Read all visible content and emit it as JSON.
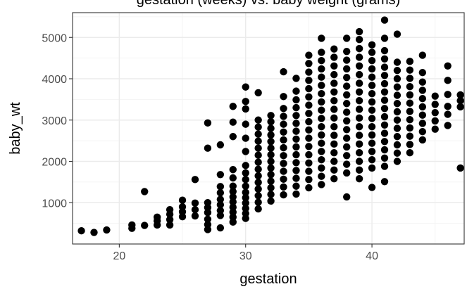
{
  "chart_data": {
    "type": "scatter",
    "title": "gestation (weeks) vs. baby weight (grams)",
    "xlabel": "gestation",
    "ylabel": "baby_wt",
    "xlim": [
      16.3,
      47.3
    ],
    "ylim": [
      0,
      5600
    ],
    "x_ticks": [
      20,
      30,
      40
    ],
    "y_ticks": [
      1000,
      2000,
      3000,
      4000,
      5000
    ],
    "x_tick_labels": [
      "20",
      "30",
      "40"
    ],
    "y_tick_labels": [
      "1000",
      "2000",
      "3000",
      "4000",
      "5000"
    ],
    "grid": true,
    "point_color": "#000000",
    "points": [
      [
        17,
        320
      ],
      [
        18,
        280
      ],
      [
        19,
        340
      ],
      [
        21,
        380
      ],
      [
        21,
        460
      ],
      [
        22,
        450
      ],
      [
        22,
        1270
      ],
      [
        23,
        460
      ],
      [
        23,
        560
      ],
      [
        23,
        650
      ],
      [
        24,
        460
      ],
      [
        24,
        590
      ],
      [
        24,
        720
      ],
      [
        24,
        830
      ],
      [
        25,
        660
      ],
      [
        25,
        780
      ],
      [
        25,
        900
      ],
      [
        25,
        1060
      ],
      [
        26,
        680
      ],
      [
        26,
        830
      ],
      [
        26,
        990
      ],
      [
        26,
        1560
      ],
      [
        27,
        350
      ],
      [
        27,
        470
      ],
      [
        27,
        600
      ],
      [
        27,
        760
      ],
      [
        27,
        880
      ],
      [
        27,
        1000
      ],
      [
        27,
        2320
      ],
      [
        27,
        2930
      ],
      [
        28,
        390
      ],
      [
        28,
        690
      ],
      [
        28,
        810
      ],
      [
        28,
        950
      ],
      [
        28,
        1080
      ],
      [
        28,
        1240
      ],
      [
        28,
        1390
      ],
      [
        28,
        1680
      ],
      [
        28,
        2400
      ],
      [
        29,
        530
      ],
      [
        29,
        650
      ],
      [
        29,
        770
      ],
      [
        29,
        890
      ],
      [
        29,
        1020
      ],
      [
        29,
        1140
      ],
      [
        29,
        1270
      ],
      [
        29,
        1400
      ],
      [
        29,
        1600
      ],
      [
        29,
        1800
      ],
      [
        29,
        2600
      ],
      [
        29,
        2950
      ],
      [
        29,
        3330
      ],
      [
        30,
        620
      ],
      [
        30,
        740
      ],
      [
        30,
        860
      ],
      [
        30,
        990
      ],
      [
        30,
        1120
      ],
      [
        30,
        1250
      ],
      [
        30,
        1400
      ],
      [
        30,
        1560
      ],
      [
        30,
        1720
      ],
      [
        30,
        1900
      ],
      [
        30,
        2240
      ],
      [
        30,
        2560
      ],
      [
        30,
        2900
      ],
      [
        30,
        3270
      ],
      [
        30,
        3450
      ],
      [
        30,
        3800
      ],
      [
        31,
        850
      ],
      [
        31,
        1010
      ],
      [
        31,
        1170
      ],
      [
        31,
        1330
      ],
      [
        31,
        1490
      ],
      [
        31,
        1650
      ],
      [
        31,
        1810
      ],
      [
        31,
        1980
      ],
      [
        31,
        2150
      ],
      [
        31,
        2320
      ],
      [
        31,
        2490
      ],
      [
        31,
        2660
      ],
      [
        31,
        2830
      ],
      [
        31,
        3000
      ],
      [
        31,
        3660
      ],
      [
        32,
        1040
      ],
      [
        32,
        1200
      ],
      [
        32,
        1360
      ],
      [
        32,
        1520
      ],
      [
        32,
        1680
      ],
      [
        32,
        1840
      ],
      [
        32,
        2000
      ],
      [
        32,
        2160
      ],
      [
        32,
        2320
      ],
      [
        32,
        2480
      ],
      [
        32,
        2640
      ],
      [
        32,
        2800
      ],
      [
        32,
        2960
      ],
      [
        32,
        3110
      ],
      [
        33,
        1190
      ],
      [
        33,
        1380
      ],
      [
        33,
        1570
      ],
      [
        33,
        1760
      ],
      [
        33,
        1950
      ],
      [
        33,
        2140
      ],
      [
        33,
        2330
      ],
      [
        33,
        2520
      ],
      [
        33,
        2710
      ],
      [
        33,
        2900
      ],
      [
        33,
        3090
      ],
      [
        33,
        3280
      ],
      [
        33,
        3570
      ],
      [
        33,
        4170
      ],
      [
        34,
        1210
      ],
      [
        34,
        1400
      ],
      [
        34,
        1590
      ],
      [
        34,
        1780
      ],
      [
        34,
        1970
      ],
      [
        34,
        2160
      ],
      [
        34,
        2350
      ],
      [
        34,
        2540
      ],
      [
        34,
        2730
      ],
      [
        34,
        2920
      ],
      [
        34,
        3110
      ],
      [
        34,
        3300
      ],
      [
        34,
        3490
      ],
      [
        34,
        3700
      ],
      [
        34,
        4010
      ],
      [
        35,
        1360
      ],
      [
        35,
        1560
      ],
      [
        35,
        1760
      ],
      [
        35,
        1960
      ],
      [
        35,
        2160
      ],
      [
        35,
        2360
      ],
      [
        35,
        2560
      ],
      [
        35,
        2760
      ],
      [
        35,
        2960
      ],
      [
        35,
        3160
      ],
      [
        35,
        3360
      ],
      [
        35,
        3560
      ],
      [
        35,
        3760
      ],
      [
        35,
        3960
      ],
      [
        35,
        4160
      ],
      [
        35,
        4370
      ],
      [
        35,
        4570
      ],
      [
        36,
        1440
      ],
      [
        36,
        1640
      ],
      [
        36,
        1840
      ],
      [
        36,
        2040
      ],
      [
        36,
        2240
      ],
      [
        36,
        2440
      ],
      [
        36,
        2640
      ],
      [
        36,
        2840
      ],
      [
        36,
        3040
      ],
      [
        36,
        3240
      ],
      [
        36,
        3440
      ],
      [
        36,
        3640
      ],
      [
        36,
        3840
      ],
      [
        36,
        4040
      ],
      [
        36,
        4240
      ],
      [
        36,
        4440
      ],
      [
        36,
        4640
      ],
      [
        36,
        4980
      ],
      [
        37,
        1580
      ],
      [
        37,
        1790
      ],
      [
        37,
        2000
      ],
      [
        37,
        2210
      ],
      [
        37,
        2420
      ],
      [
        37,
        2630
      ],
      [
        37,
        2840
      ],
      [
        37,
        3050
      ],
      [
        37,
        3260
      ],
      [
        37,
        3470
      ],
      [
        37,
        3680
      ],
      [
        37,
        3890
      ],
      [
        37,
        4100
      ],
      [
        37,
        4310
      ],
      [
        37,
        4520
      ],
      [
        37,
        4720
      ],
      [
        38,
        1140
      ],
      [
        38,
        1720
      ],
      [
        38,
        1930
      ],
      [
        38,
        2140
      ],
      [
        38,
        2350
      ],
      [
        38,
        2560
      ],
      [
        38,
        2770
      ],
      [
        38,
        2980
      ],
      [
        38,
        3190
      ],
      [
        38,
        3400
      ],
      [
        38,
        3610
      ],
      [
        38,
        3820
      ],
      [
        38,
        4030
      ],
      [
        38,
        4240
      ],
      [
        38,
        4450
      ],
      [
        38,
        4660
      ],
      [
        38,
        4980
      ],
      [
        39,
        1580
      ],
      [
        39,
        1790
      ],
      [
        39,
        2000
      ],
      [
        39,
        2210
      ],
      [
        39,
        2420
      ],
      [
        39,
        2630
      ],
      [
        39,
        2840
      ],
      [
        39,
        3050
      ],
      [
        39,
        3260
      ],
      [
        39,
        3470
      ],
      [
        39,
        3680
      ],
      [
        39,
        3890
      ],
      [
        39,
        4100
      ],
      [
        39,
        4310
      ],
      [
        39,
        4520
      ],
      [
        39,
        4730
      ],
      [
        39,
        4950
      ],
      [
        39,
        5140
      ],
      [
        40,
        1370
      ],
      [
        40,
        1840
      ],
      [
        40,
        2040
      ],
      [
        40,
        2240
      ],
      [
        40,
        2440
      ],
      [
        40,
        2640
      ],
      [
        40,
        2840
      ],
      [
        40,
        3040
      ],
      [
        40,
        3240
      ],
      [
        40,
        3440
      ],
      [
        40,
        3640
      ],
      [
        40,
        3840
      ],
      [
        40,
        4040
      ],
      [
        40,
        4240
      ],
      [
        40,
        4440
      ],
      [
        40,
        4640
      ],
      [
        40,
        4820
      ],
      [
        41,
        1510
      ],
      [
        41,
        1880
      ],
      [
        41,
        2080
      ],
      [
        41,
        2280
      ],
      [
        41,
        2480
      ],
      [
        41,
        2680
      ],
      [
        41,
        2880
      ],
      [
        41,
        3080
      ],
      [
        41,
        3280
      ],
      [
        41,
        3480
      ],
      [
        41,
        3680
      ],
      [
        41,
        3880
      ],
      [
        41,
        4080
      ],
      [
        41,
        4280
      ],
      [
        41,
        4480
      ],
      [
        41,
        4680
      ],
      [
        41,
        4980
      ],
      [
        41,
        5420
      ],
      [
        42,
        2000
      ],
      [
        42,
        2200
      ],
      [
        42,
        2400
      ],
      [
        42,
        2600
      ],
      [
        42,
        2800
      ],
      [
        42,
        3000
      ],
      [
        42,
        3200
      ],
      [
        42,
        3400
      ],
      [
        42,
        3600
      ],
      [
        42,
        3800
      ],
      [
        42,
        4000
      ],
      [
        42,
        4200
      ],
      [
        42,
        4400
      ],
      [
        42,
        5080
      ],
      [
        43,
        2210
      ],
      [
        43,
        2410
      ],
      [
        43,
        2610
      ],
      [
        43,
        2810
      ],
      [
        43,
        3010
      ],
      [
        43,
        3210
      ],
      [
        43,
        3410
      ],
      [
        43,
        3610
      ],
      [
        43,
        3810
      ],
      [
        43,
        4010
      ],
      [
        43,
        4210
      ],
      [
        43,
        4420
      ],
      [
        44,
        2520
      ],
      [
        44,
        2720
      ],
      [
        44,
        2920
      ],
      [
        44,
        3120
      ],
      [
        44,
        3320
      ],
      [
        44,
        3520
      ],
      [
        44,
        3720
      ],
      [
        44,
        3920
      ],
      [
        44,
        4150
      ],
      [
        44,
        4570
      ],
      [
        45,
        2780
      ],
      [
        45,
        2980
      ],
      [
        45,
        3180
      ],
      [
        45,
        3380
      ],
      [
        45,
        3580
      ],
      [
        46,
        2870
      ],
      [
        46,
        3140
      ],
      [
        46,
        3330
      ],
      [
        46,
        3620
      ],
      [
        46,
        3960
      ],
      [
        46,
        4310
      ],
      [
        47,
        1840
      ],
      [
        47,
        3320
      ],
      [
        47,
        3470
      ],
      [
        47,
        3610
      ]
    ]
  }
}
